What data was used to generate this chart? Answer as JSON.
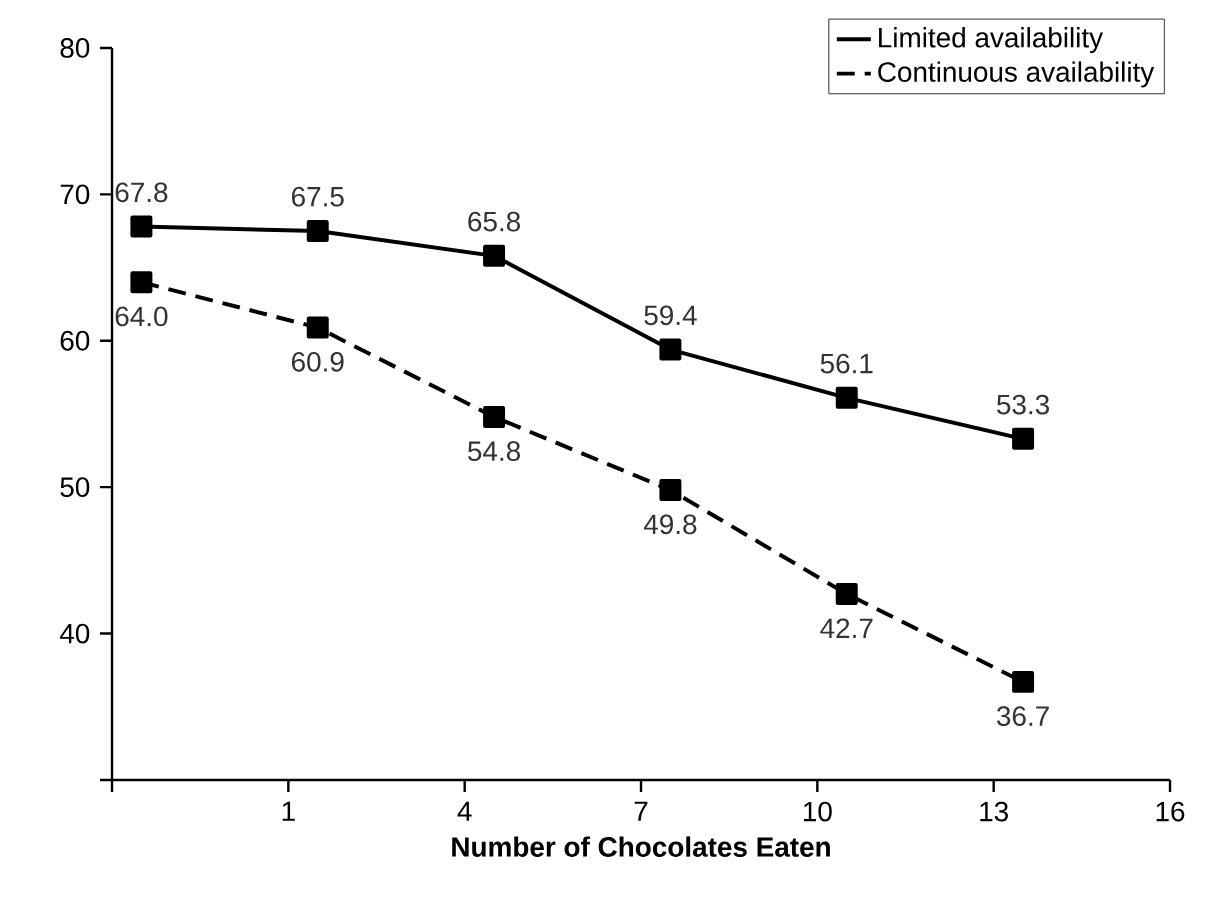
{
  "chart_data": {
    "type": "line",
    "xlabel": "Number of Chocolates Eaten",
    "x": [
      -1.5,
      1.5,
      4.5,
      7.5,
      10.5,
      13.5
    ],
    "series": [
      {
        "name": "Limited availability",
        "color": "#000000",
        "line_style": "solid",
        "values": [
          67.8,
          67.5,
          65.8,
          59.4,
          56.1,
          53.3
        ],
        "value_labels": [
          "67.8",
          "67.5",
          "65.8",
          "59.4",
          "56.1",
          "53.3"
        ]
      },
      {
        "name": "Continuous availability",
        "color": "#000000",
        "line_style": "dashed",
        "values": [
          64.0,
          60.9,
          54.8,
          49.8,
          42.7,
          36.7
        ],
        "value_labels": [
          "64.0",
          "60.9",
          "54.8",
          "49.8",
          "42.7",
          "36.7"
        ]
      }
    ],
    "xlim": [
      -2,
      16
    ],
    "xticks": [
      {
        "value": -2,
        "label": null
      },
      1,
      4,
      7,
      10,
      13,
      16
    ],
    "ylim": [
      30,
      80
    ],
    "yticks": [
      {
        "value": 30,
        "label": null
      },
      40,
      50,
      60,
      70,
      80
    ],
    "marker": "square",
    "legend": "top right",
    "grid": false
  }
}
